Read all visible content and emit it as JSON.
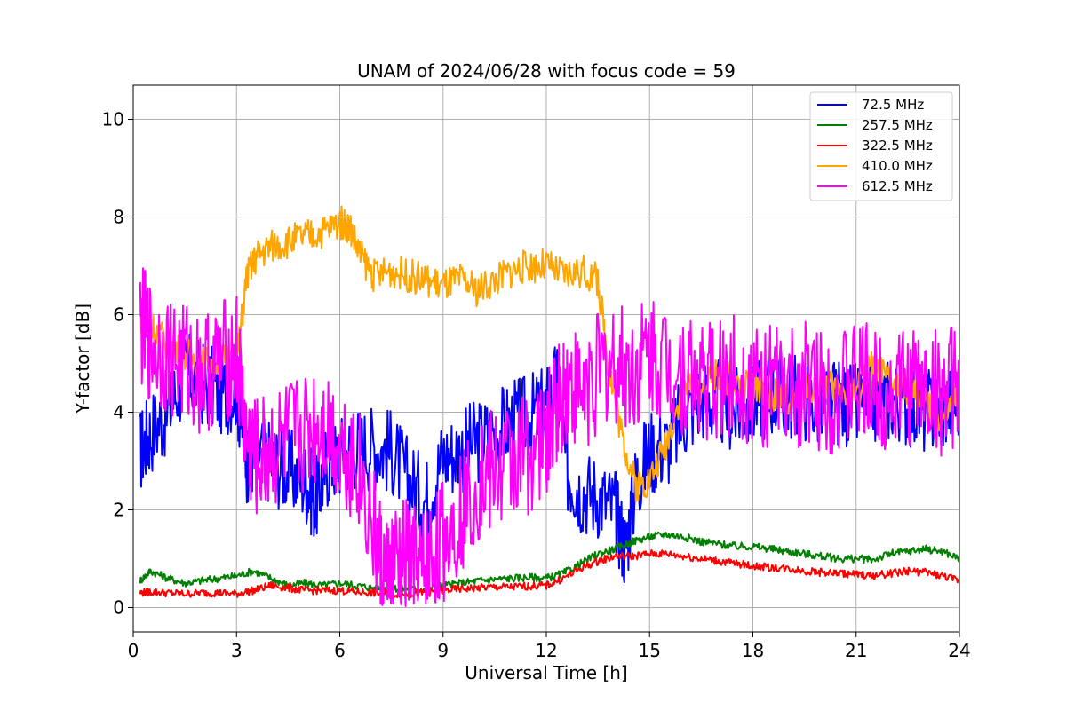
{
  "chart_data": {
    "type": "line",
    "title": "UNAM of 2024/06/28 with focus code = 59",
    "xlabel": "Universal Time [h]",
    "ylabel": "Y-factor [dB]",
    "xlim": [
      0,
      24
    ],
    "ylim": [
      -0.5,
      10.7
    ],
    "xticks": [
      0,
      3,
      6,
      9,
      12,
      15,
      18,
      21,
      24
    ],
    "yticks": [
      0,
      2,
      4,
      6,
      8,
      10
    ],
    "grid": true,
    "legend_position": "top-right",
    "series": [
      {
        "name": " 72.5 MHz",
        "color": "#0000ff",
        "x": [
          0.2,
          0.5,
          1,
          1.5,
          2,
          2.5,
          3,
          3.3,
          3.5,
          4,
          4.5,
          5,
          5.3,
          5.6,
          6,
          6.5,
          7,
          7.5,
          8,
          8.5,
          9,
          9.5,
          10,
          10.5,
          11,
          11.5,
          12,
          12.3,
          12.6,
          13,
          13.5,
          14,
          14.3,
          14.6,
          15,
          15.5,
          16,
          16.5,
          17,
          17.5,
          18,
          18.5,
          19,
          19.5,
          20,
          20.5,
          21,
          21.5,
          22,
          22.5,
          23,
          23.5,
          24
        ],
        "y": [
          3.2,
          3.6,
          4.0,
          4.8,
          4.6,
          4.4,
          4.5,
          3.0,
          3.2,
          3.0,
          2.8,
          2.6,
          2.2,
          2.9,
          3.1,
          3.3,
          3.3,
          3.2,
          2.6,
          2.2,
          3.1,
          3.2,
          3.4,
          3.6,
          3.8,
          3.9,
          4.1,
          4.6,
          2.8,
          2.4,
          2.3,
          2.0,
          1.2,
          2.6,
          3.2,
          3.3,
          3.9,
          4.3,
          4.2,
          4.0,
          4.2,
          4.4,
          4.3,
          4.3,
          4.1,
          4.2,
          4.1,
          4.2,
          4.3,
          4.2,
          4.0,
          4.1,
          4.3
        ]
      },
      {
        "name": "257.5 MHz",
        "color": "#008000",
        "x": [
          0.2,
          0.5,
          1,
          1.5,
          2,
          2.5,
          3,
          3.5,
          4,
          4.5,
          5,
          5.5,
          6,
          6.5,
          7,
          7.5,
          8,
          8.5,
          9,
          9.5,
          10,
          10.5,
          11,
          11.5,
          12,
          12.5,
          13,
          13.5,
          14,
          14.5,
          15,
          15.5,
          16,
          16.5,
          17,
          17.5,
          18,
          18.5,
          19,
          19.5,
          20,
          20.5,
          21,
          21.5,
          22,
          22.5,
          23,
          23.5,
          24
        ],
        "y": [
          0.55,
          0.75,
          0.6,
          0.5,
          0.55,
          0.6,
          0.65,
          0.75,
          0.6,
          0.45,
          0.5,
          0.45,
          0.5,
          0.45,
          0.4,
          0.4,
          0.38,
          0.38,
          0.45,
          0.5,
          0.55,
          0.58,
          0.6,
          0.62,
          0.6,
          0.7,
          0.9,
          1.1,
          1.2,
          1.35,
          1.45,
          1.5,
          1.45,
          1.35,
          1.3,
          1.25,
          1.25,
          1.2,
          1.15,
          1.1,
          1.05,
          1.0,
          1.0,
          0.98,
          1.1,
          1.15,
          1.2,
          1.15,
          1.0
        ]
      },
      {
        "name": "322.5 MHz",
        "color": "#ff0000",
        "x": [
          0.2,
          0.5,
          1,
          1.5,
          2,
          2.5,
          3,
          3.5,
          4,
          4.5,
          5,
          5.5,
          6,
          6.5,
          7,
          7.5,
          8,
          8.5,
          9,
          9.5,
          10,
          10.5,
          11,
          11.5,
          12,
          12.5,
          13,
          13.5,
          14,
          14.5,
          15,
          15.5,
          16,
          16.5,
          17,
          17.5,
          18,
          18.5,
          19,
          19.5,
          20,
          20.5,
          21,
          21.5,
          22,
          22.5,
          23,
          23.5,
          24
        ],
        "y": [
          0.3,
          0.32,
          0.3,
          0.28,
          0.3,
          0.3,
          0.28,
          0.35,
          0.45,
          0.4,
          0.35,
          0.35,
          0.35,
          0.32,
          0.3,
          0.28,
          0.28,
          0.3,
          0.35,
          0.38,
          0.4,
          0.42,
          0.42,
          0.44,
          0.45,
          0.6,
          0.8,
          0.95,
          1.05,
          1.05,
          1.1,
          1.1,
          1.05,
          1.0,
          0.95,
          0.9,
          0.85,
          0.82,
          0.8,
          0.75,
          0.72,
          0.7,
          0.68,
          0.65,
          0.7,
          0.75,
          0.72,
          0.65,
          0.55
        ]
      },
      {
        "name": "410.0 MHz",
        "color": "#ffa500",
        "x": [
          0.2,
          0.5,
          1,
          1.5,
          2,
          2.5,
          3,
          3.3,
          3.6,
          4,
          4.5,
          5,
          5.5,
          6,
          6.3,
          6.6,
          7,
          7.5,
          8,
          8.5,
          9,
          9.5,
          10,
          10.5,
          11,
          11.5,
          12,
          12.5,
          13,
          13.5,
          13.8,
          14.2,
          14.6,
          15,
          15.5,
          16,
          16.5,
          17,
          17.5,
          18,
          18.5,
          19,
          19.5,
          20,
          20.5,
          21,
          21.5,
          22,
          22.5,
          23,
          23.5,
          24
        ],
        "y": [
          6.0,
          5.8,
          5.4,
          5.2,
          5.0,
          5.1,
          5.0,
          6.8,
          7.2,
          7.4,
          7.5,
          7.6,
          7.7,
          7.9,
          7.8,
          7.2,
          6.8,
          6.9,
          6.8,
          6.7,
          6.6,
          6.7,
          6.5,
          6.7,
          6.9,
          7.0,
          7.0,
          6.8,
          6.9,
          6.7,
          5.0,
          3.5,
          2.5,
          2.6,
          3.4,
          4.6,
          4.5,
          4.8,
          4.6,
          4.5,
          4.4,
          4.3,
          4.4,
          4.6,
          4.5,
          4.4,
          5.0,
          4.6,
          4.5,
          4.2,
          3.8,
          4.4
        ]
      },
      {
        "name": "612.5 MHz",
        "color": "#ff00ff",
        "x": [
          0.2,
          0.5,
          1,
          1.5,
          2,
          2.5,
          3,
          3.3,
          3.6,
          4,
          4.5,
          5,
          5.5,
          6,
          6.5,
          7,
          7.3,
          7.6,
          8,
          8.3,
          8.6,
          9,
          9.5,
          10,
          10.5,
          11,
          11.5,
          12,
          12.3,
          12.6,
          13,
          13.5,
          14,
          14.5,
          15,
          15.5,
          16,
          16.5,
          17,
          17.5,
          18,
          18.5,
          19,
          19.5,
          20,
          20.5,
          21,
          21.5,
          22,
          22.5,
          23,
          23.5,
          24
        ],
        "y": [
          5.8,
          5.4,
          5.2,
          5.0,
          4.8,
          5.0,
          5.2,
          3.4,
          3.0,
          3.2,
          3.4,
          3.6,
          3.8,
          3.4,
          3.0,
          1.5,
          0.6,
          0.8,
          1.0,
          0.6,
          1.0,
          1.4,
          2.0,
          2.6,
          2.8,
          3.0,
          3.2,
          3.4,
          4.2,
          4.6,
          4.4,
          4.8,
          5.0,
          4.8,
          5.2,
          5.0,
          4.8,
          4.7,
          4.6,
          4.8,
          4.6,
          4.5,
          4.4,
          4.6,
          4.5,
          4.4,
          4.6,
          4.5,
          4.4,
          4.6,
          4.5,
          4.4,
          4.6
        ]
      }
    ]
  }
}
